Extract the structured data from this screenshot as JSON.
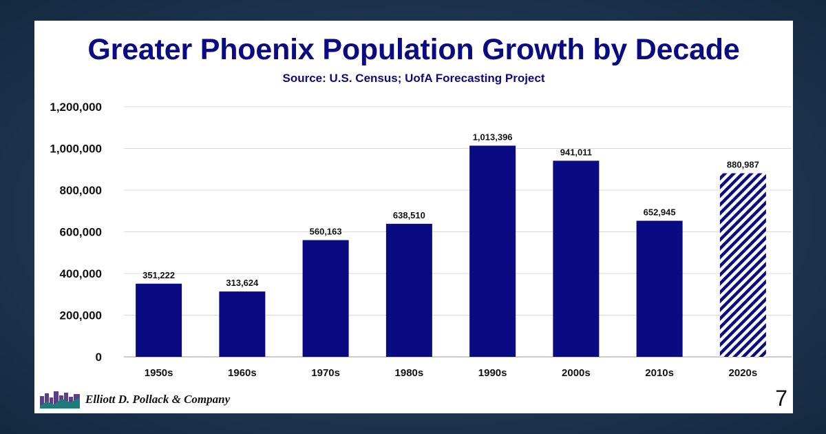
{
  "chart_data": {
    "type": "bar",
    "title": "Greater Phoenix Population Growth by Decade",
    "subtitle": "Source: U.S. Census; UofA Forecasting Project",
    "categories": [
      "1950s",
      "1960s",
      "1970s",
      "1980s",
      "1990s",
      "2000s",
      "2010s",
      "2020s"
    ],
    "values": [
      351222,
      313624,
      560163,
      638510,
      1013396,
      941011,
      652945,
      880987
    ],
    "data_labels": [
      "351,222",
      "313,624",
      "560,163",
      "638,510",
      "1,013,396",
      "941,011",
      "652,945",
      "880,987"
    ],
    "forecast": [
      false,
      false,
      false,
      false,
      false,
      false,
      false,
      true
    ],
    "ylim": [
      0,
      1200000
    ],
    "yticks": [
      0,
      200000,
      400000,
      600000,
      800000,
      1000000,
      1200000
    ],
    "ytick_labels": [
      "0",
      "200,000",
      "400,000",
      "600,000",
      "800,000",
      "1,000,000",
      "1,200,000"
    ],
    "xlabel": "",
    "ylabel": "",
    "grid": true,
    "legend": "none",
    "bar_color": "#0a0a82"
  },
  "footer": {
    "company": "Elliott D. Pollack & Company",
    "page_number": "7"
  }
}
